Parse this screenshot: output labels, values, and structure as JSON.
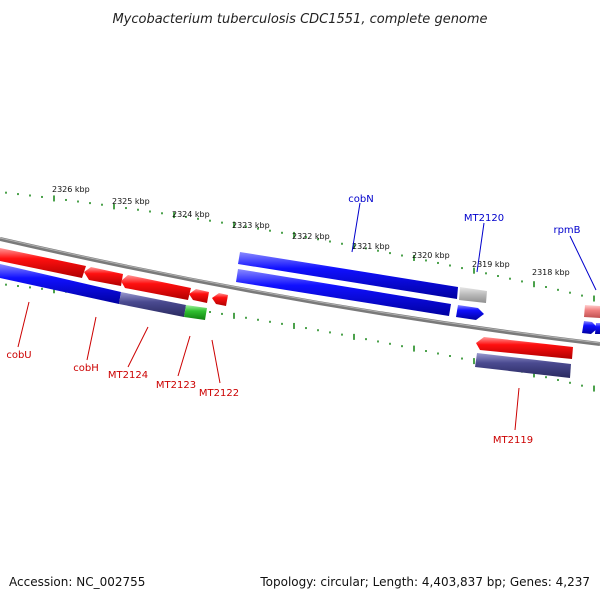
{
  "title": "Mycobacterium tuberculosis CDC1551, complete genome",
  "footer": {
    "accession": "Accession: NC_002755",
    "summary": "Topology: circular; Length: 4,403,837 bp; Genes: 4,237"
  },
  "colors": {
    "forward_strand": "#0000ee",
    "reverse_strand": "#ee0000",
    "tick": "#1f8a1f",
    "backbone": "#808080",
    "label_forward": "#0000cc",
    "label_reverse": "#cc0000"
  },
  "scale_labels": [
    "2326 kbp",
    "2325 kbp",
    "2324 kbp",
    "2323 kbp",
    "2322 kbp",
    "2321 kbp",
    "2320 kbp",
    "2319 kbp",
    "2318 kbp"
  ],
  "gene_labels": [
    {
      "text": "cobN",
      "strand": "forward"
    },
    {
      "text": "MT2120",
      "strand": "forward"
    },
    {
      "text": "rpmB",
      "strand": "forward"
    },
    {
      "text": "cobU",
      "strand": "reverse"
    },
    {
      "text": "cobH",
      "strand": "reverse"
    },
    {
      "text": "MT2124",
      "strand": "reverse"
    },
    {
      "text": "MT2123",
      "strand": "reverse"
    },
    {
      "text": "MT2122",
      "strand": "reverse"
    },
    {
      "text": "MT2119",
      "strand": "reverse"
    }
  ]
}
